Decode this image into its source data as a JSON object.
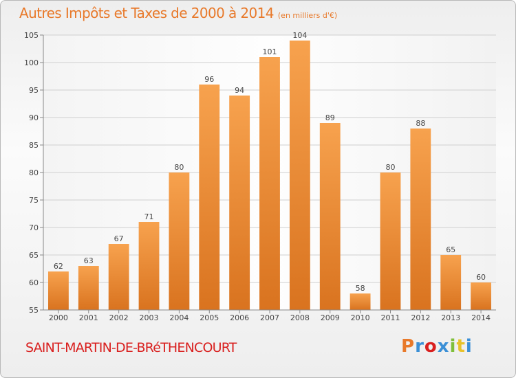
{
  "header": {
    "title": "Autres Impôts et Taxes de 2000 à 2014",
    "unit": "(en milliers d'€)"
  },
  "footer": {
    "commune": "SAINT-MARTIN-DE-BRéTHENCOURT",
    "logo": "Proxiti",
    "logo_colors": [
      "#e8792a",
      "#3a8fd6",
      "#d9201f",
      "#3a8fd6",
      "#7fbf3a",
      "#e8c22a",
      "#3a8fd6"
    ]
  },
  "chart_data": {
    "type": "bar",
    "title": "Autres Impôts et Taxes de 2000 à 2014",
    "subtitle": "(en milliers d'€)",
    "categories": [
      "2000",
      "2001",
      "2002",
      "2003",
      "2004",
      "2005",
      "2006",
      "2007",
      "2008",
      "2009",
      "2010",
      "2011",
      "2012",
      "2013",
      "2014"
    ],
    "values": [
      62,
      63,
      67,
      71,
      80,
      96,
      94,
      101,
      104,
      89,
      58,
      80,
      88,
      65,
      60
    ],
    "ylim": [
      55,
      105
    ],
    "yticks": [
      55,
      60,
      65,
      70,
      75,
      80,
      85,
      90,
      95,
      100,
      105
    ],
    "grid": true,
    "bar_color_top": "#f7a24e",
    "bar_color_bottom": "#d9731f"
  }
}
